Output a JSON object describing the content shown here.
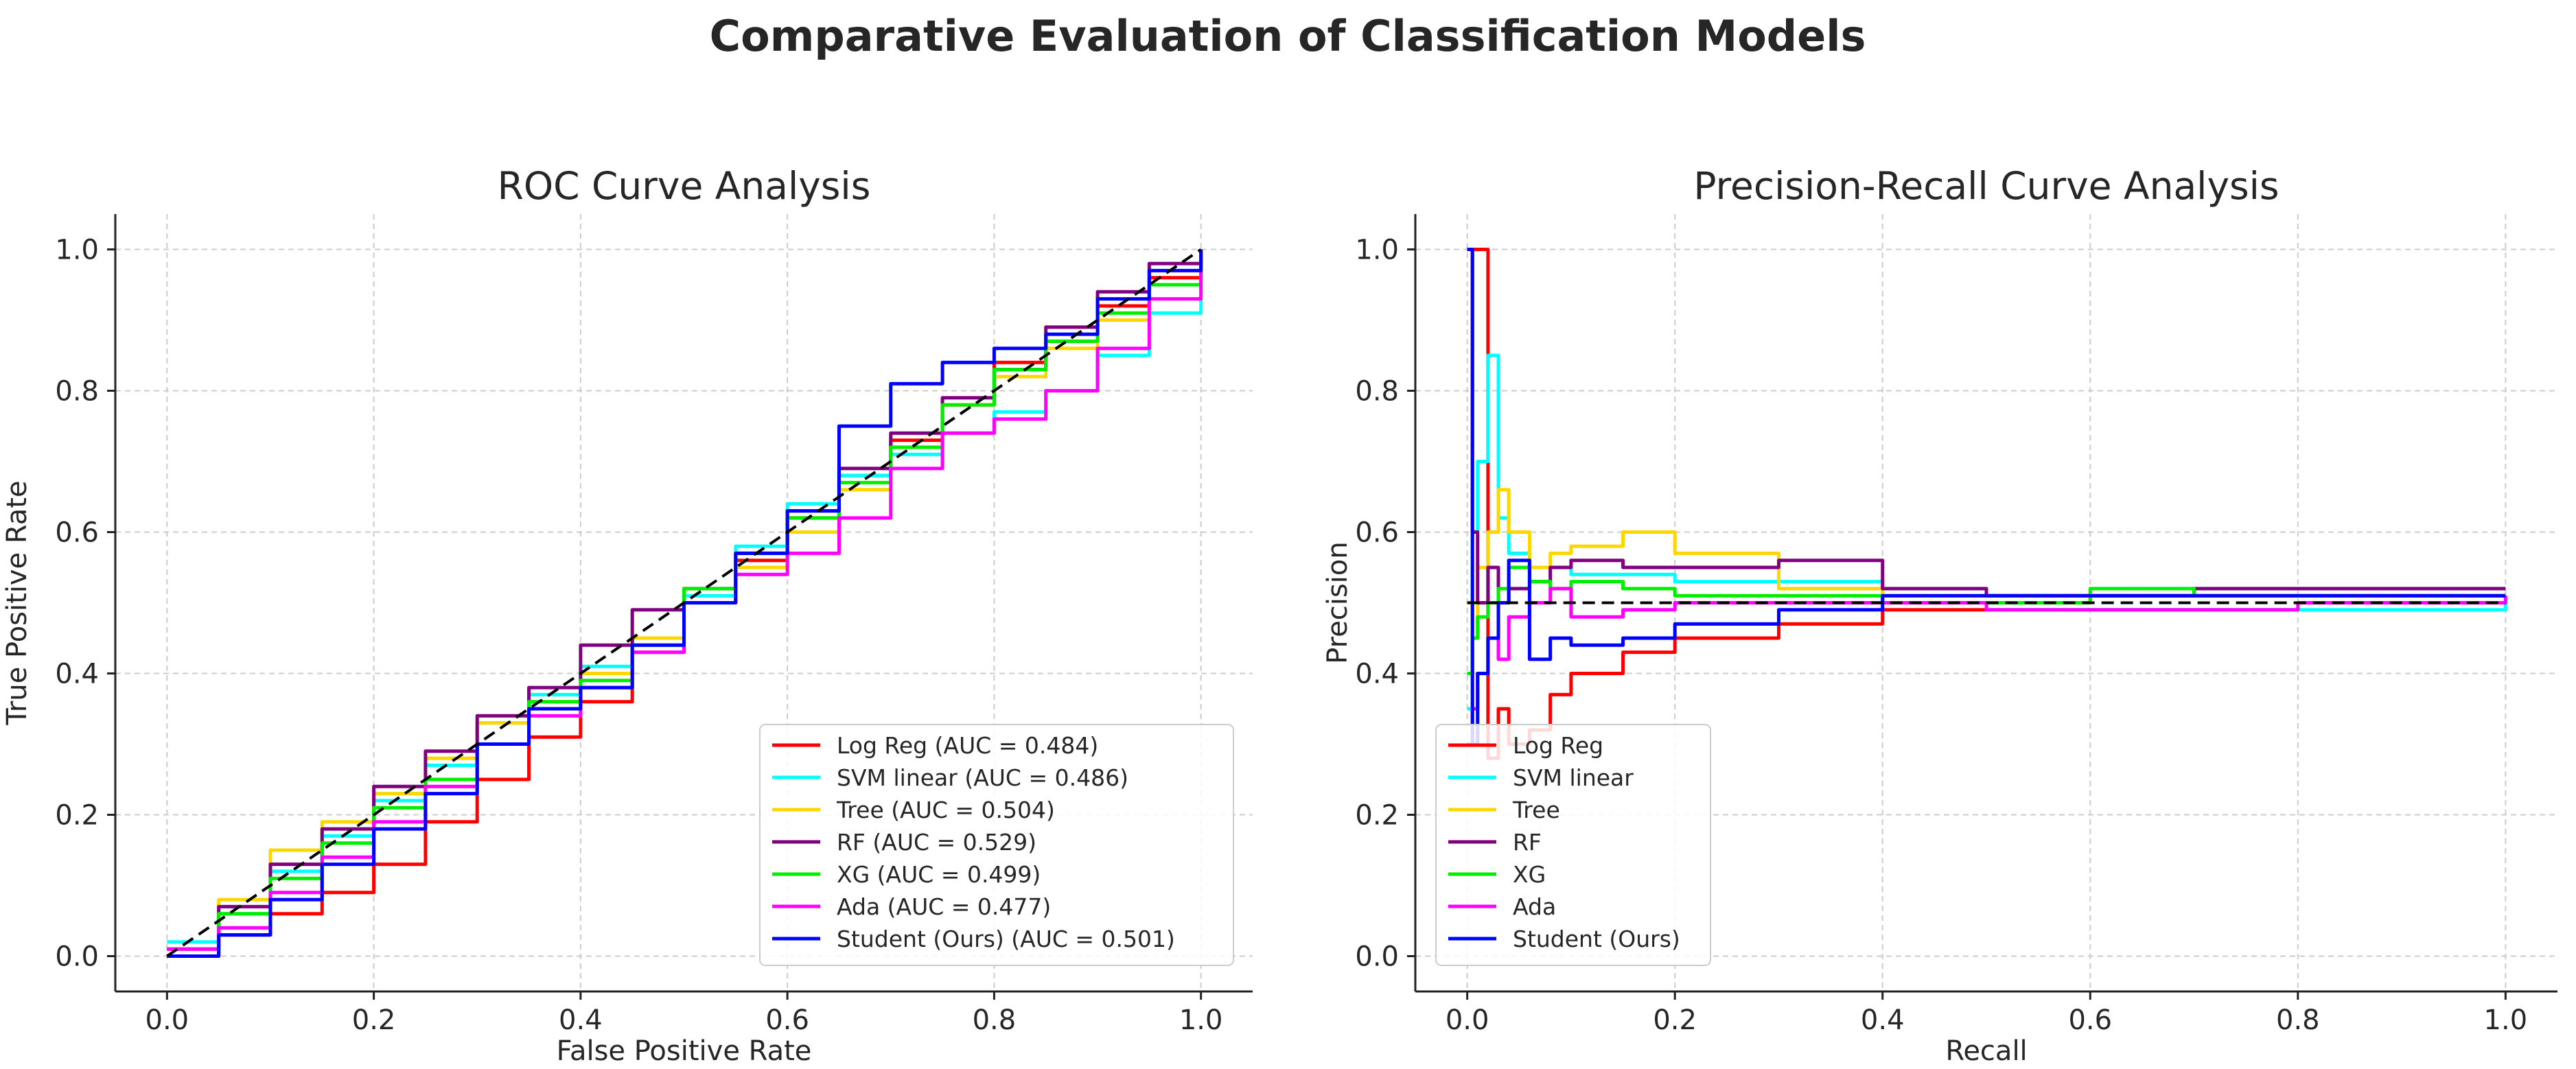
{
  "figure_title": "Comparative Evaluation of Classification Models",
  "colors": {
    "Log Reg": "#ff0000",
    "SVM linear": "#00ffff",
    "Tree": "#ffd700",
    "RF": "#800080",
    "XG": "#00ee00",
    "Ada": "#ff00ff",
    "Student (Ours)": "#0000ff",
    "baseline": "#000000",
    "grid": "#cccccc",
    "axis": "#222222"
  },
  "chart_data": [
    {
      "type": "line",
      "title": "ROC Curve Analysis",
      "xlabel": "False Positive Rate",
      "ylabel": "True Positive Rate",
      "xlim": [
        -0.05,
        1.05
      ],
      "ylim": [
        -0.05,
        1.05
      ],
      "xticks": [
        "0.0",
        "0.2",
        "0.4",
        "0.6",
        "0.8",
        "1.0"
      ],
      "yticks": [
        "0.0",
        "0.2",
        "0.4",
        "0.6",
        "0.8",
        "1.0"
      ],
      "grid": true,
      "legend_position": "lower-right",
      "baseline": {
        "x": [
          0,
          1
        ],
        "y": [
          0,
          1
        ],
        "style": "dashed"
      },
      "series": [
        {
          "name": "Log Reg",
          "legend": "Log Reg (AUC = 0.484)",
          "x": [
            0,
            0.05,
            0.1,
            0.15,
            0.2,
            0.25,
            0.3,
            0.35,
            0.4,
            0.45,
            0.5,
            0.55,
            0.6,
            0.65,
            0.7,
            0.75,
            0.8,
            0.85,
            0.9,
            0.95,
            1.0
          ],
          "y": [
            0,
            0.03,
            0.06,
            0.09,
            0.13,
            0.19,
            0.25,
            0.31,
            0.36,
            0.43,
            0.5,
            0.56,
            0.62,
            0.68,
            0.73,
            0.78,
            0.84,
            0.87,
            0.92,
            0.96,
            1.0
          ]
        },
        {
          "name": "SVM linear",
          "legend": "SVM linear (AUC = 0.486)",
          "x": [
            0,
            0.05,
            0.1,
            0.15,
            0.2,
            0.25,
            0.3,
            0.35,
            0.4,
            0.45,
            0.5,
            0.55,
            0.6,
            0.65,
            0.7,
            0.75,
            0.8,
            0.85,
            0.9,
            0.95,
            1.0
          ],
          "y": [
            0.02,
            0.06,
            0.12,
            0.17,
            0.22,
            0.27,
            0.33,
            0.37,
            0.41,
            0.45,
            0.51,
            0.58,
            0.64,
            0.68,
            0.71,
            0.74,
            0.77,
            0.8,
            0.85,
            0.91,
            1.0
          ]
        },
        {
          "name": "Tree",
          "legend": "Tree (AUC = 0.504)",
          "x": [
            0,
            0.05,
            0.1,
            0.15,
            0.2,
            0.25,
            0.3,
            0.35,
            0.4,
            0.45,
            0.5,
            0.55,
            0.6,
            0.65,
            0.7,
            0.75,
            0.8,
            0.85,
            0.9,
            0.95,
            1.0
          ],
          "y": [
            0.01,
            0.08,
            0.15,
            0.19,
            0.23,
            0.28,
            0.33,
            0.36,
            0.4,
            0.45,
            0.5,
            0.55,
            0.6,
            0.66,
            0.72,
            0.78,
            0.82,
            0.86,
            0.9,
            0.95,
            1.0
          ]
        },
        {
          "name": "RF",
          "legend": "RF (AUC = 0.529)",
          "x": [
            0,
            0.05,
            0.1,
            0.15,
            0.2,
            0.25,
            0.3,
            0.35,
            0.4,
            0.45,
            0.5,
            0.55,
            0.6,
            0.65,
            0.7,
            0.75,
            0.8,
            0.85,
            0.9,
            0.95,
            1.0
          ],
          "y": [
            0.01,
            0.07,
            0.13,
            0.18,
            0.24,
            0.29,
            0.34,
            0.38,
            0.44,
            0.49,
            0.52,
            0.57,
            0.63,
            0.69,
            0.74,
            0.79,
            0.83,
            0.89,
            0.94,
            0.98,
            1.0
          ]
        },
        {
          "name": "XG",
          "legend": "XG (AUC = 0.499)",
          "x": [
            0,
            0.05,
            0.1,
            0.15,
            0.2,
            0.25,
            0.3,
            0.35,
            0.4,
            0.45,
            0.5,
            0.55,
            0.6,
            0.65,
            0.7,
            0.75,
            0.8,
            0.85,
            0.9,
            0.95,
            1.0
          ],
          "y": [
            0,
            0.06,
            0.11,
            0.16,
            0.21,
            0.25,
            0.3,
            0.36,
            0.39,
            0.44,
            0.52,
            0.57,
            0.62,
            0.67,
            0.72,
            0.78,
            0.83,
            0.87,
            0.91,
            0.95,
            1.0
          ]
        },
        {
          "name": "Ada",
          "legend": "Ada (AUC = 0.477)",
          "x": [
            0,
            0.05,
            0.1,
            0.15,
            0.2,
            0.25,
            0.3,
            0.35,
            0.4,
            0.45,
            0.5,
            0.55,
            0.6,
            0.65,
            0.7,
            0.75,
            0.8,
            0.85,
            0.9,
            0.95,
            1.0
          ],
          "y": [
            0.01,
            0.04,
            0.09,
            0.14,
            0.19,
            0.24,
            0.3,
            0.34,
            0.38,
            0.43,
            0.5,
            0.54,
            0.57,
            0.62,
            0.69,
            0.74,
            0.76,
            0.8,
            0.86,
            0.93,
            1.0
          ]
        },
        {
          "name": "Student (Ours)",
          "legend": "Student (Ours) (AUC = 0.501)",
          "x": [
            0,
            0.05,
            0.1,
            0.15,
            0.2,
            0.25,
            0.3,
            0.35,
            0.4,
            0.45,
            0.5,
            0.55,
            0.6,
            0.65,
            0.7,
            0.75,
            0.8,
            0.85,
            0.9,
            0.95,
            1.0
          ],
          "y": [
            0,
            0.03,
            0.08,
            0.13,
            0.18,
            0.23,
            0.3,
            0.35,
            0.38,
            0.44,
            0.5,
            0.57,
            0.63,
            0.75,
            0.81,
            0.84,
            0.86,
            0.88,
            0.93,
            0.97,
            1.0
          ]
        }
      ]
    },
    {
      "type": "line",
      "title": "Precision-Recall Curve Analysis",
      "xlabel": "Recall",
      "ylabel": "Precision",
      "xlim": [
        -0.05,
        1.05
      ],
      "ylim": [
        -0.05,
        1.05
      ],
      "xticks": [
        "0.0",
        "0.2",
        "0.4",
        "0.6",
        "0.8",
        "1.0"
      ],
      "yticks": [
        "0.0",
        "0.2",
        "0.4",
        "0.6",
        "0.8",
        "1.0"
      ],
      "grid": true,
      "legend_position": "lower-left",
      "baseline": {
        "x": [
          0,
          1
        ],
        "y": [
          0.5,
          0.5
        ],
        "style": "dashed"
      },
      "series": [
        {
          "name": "Log Reg",
          "legend": "Log Reg",
          "x": [
            0,
            0.005,
            0.01,
            0.02,
            0.03,
            0.04,
            0.06,
            0.08,
            0.1,
            0.15,
            0.2,
            0.3,
            0.4,
            0.5,
            0.6,
            0.7,
            0.8,
            0.9,
            1.0
          ],
          "y": [
            1.0,
            1.0,
            1.0,
            0.28,
            0.35,
            0.3,
            0.32,
            0.37,
            0.4,
            0.43,
            0.45,
            0.47,
            0.49,
            0.5,
            0.51,
            0.51,
            0.51,
            0.51,
            0.51
          ]
        },
        {
          "name": "SVM linear",
          "legend": "SVM linear",
          "x": [
            0,
            0.005,
            0.01,
            0.02,
            0.03,
            0.04,
            0.06,
            0.08,
            0.1,
            0.15,
            0.2,
            0.3,
            0.4,
            0.5,
            0.6,
            0.7,
            0.8,
            0.9,
            1.0
          ],
          "y": [
            0.35,
            0.6,
            0.7,
            0.85,
            0.62,
            0.57,
            0.53,
            0.55,
            0.54,
            0.54,
            0.53,
            0.53,
            0.5,
            0.49,
            0.49,
            0.49,
            0.49,
            0.49,
            0.51
          ]
        },
        {
          "name": "Tree",
          "legend": "Tree",
          "x": [
            0,
            0.005,
            0.01,
            0.02,
            0.03,
            0.04,
            0.06,
            0.08,
            0.1,
            0.15,
            0.2,
            0.3,
            0.4,
            0.5,
            0.6,
            0.7,
            0.8,
            0.9,
            1.0
          ],
          "y": [
            0.5,
            0.45,
            0.55,
            0.6,
            0.66,
            0.6,
            0.55,
            0.57,
            0.58,
            0.6,
            0.57,
            0.52,
            0.51,
            0.51,
            0.51,
            0.51,
            0.51,
            0.51,
            0.51
          ]
        },
        {
          "name": "RF",
          "legend": "RF",
          "x": [
            0,
            0.005,
            0.01,
            0.02,
            0.03,
            0.04,
            0.06,
            0.08,
            0.1,
            0.15,
            0.2,
            0.3,
            0.4,
            0.5,
            0.6,
            0.7,
            0.8,
            0.9,
            1.0
          ],
          "y": [
            1.0,
            0.6,
            0.5,
            0.55,
            0.5,
            0.52,
            0.53,
            0.55,
            0.56,
            0.55,
            0.55,
            0.56,
            0.52,
            0.51,
            0.51,
            0.52,
            0.52,
            0.52,
            0.52
          ]
        },
        {
          "name": "XG",
          "legend": "XG",
          "x": [
            0,
            0.005,
            0.01,
            0.02,
            0.03,
            0.04,
            0.06,
            0.08,
            0.1,
            0.15,
            0.2,
            0.3,
            0.4,
            0.5,
            0.6,
            0.7,
            0.8,
            0.9,
            1.0
          ],
          "y": [
            0.4,
            0.45,
            0.48,
            0.5,
            0.52,
            0.55,
            0.53,
            0.52,
            0.53,
            0.52,
            0.51,
            0.51,
            0.5,
            0.5,
            0.52,
            0.51,
            0.51,
            0.51,
            0.51
          ]
        },
        {
          "name": "Ada",
          "legend": "Ada",
          "x": [
            0,
            0.005,
            0.01,
            0.02,
            0.03,
            0.04,
            0.06,
            0.08,
            0.1,
            0.15,
            0.2,
            0.3,
            0.4,
            0.5,
            0.6,
            0.7,
            0.8,
            0.9,
            1.0
          ],
          "y": [
            0.3,
            0.35,
            0.4,
            0.45,
            0.42,
            0.48,
            0.5,
            0.52,
            0.48,
            0.49,
            0.5,
            0.5,
            0.5,
            0.49,
            0.49,
            0.49,
            0.5,
            0.5,
            0.51
          ]
        },
        {
          "name": "Student (Ours)",
          "legend": "Student (Ours)",
          "x": [
            0,
            0.005,
            0.01,
            0.02,
            0.03,
            0.04,
            0.06,
            0.08,
            0.1,
            0.15,
            0.2,
            0.3,
            0.4,
            0.5,
            0.6,
            0.7,
            0.8,
            0.9,
            1.0
          ],
          "y": [
            1.0,
            0.3,
            0.4,
            0.45,
            0.5,
            0.56,
            0.42,
            0.45,
            0.44,
            0.45,
            0.47,
            0.49,
            0.51,
            0.51,
            0.51,
            0.51,
            0.51,
            0.51,
            0.51
          ]
        }
      ]
    }
  ]
}
